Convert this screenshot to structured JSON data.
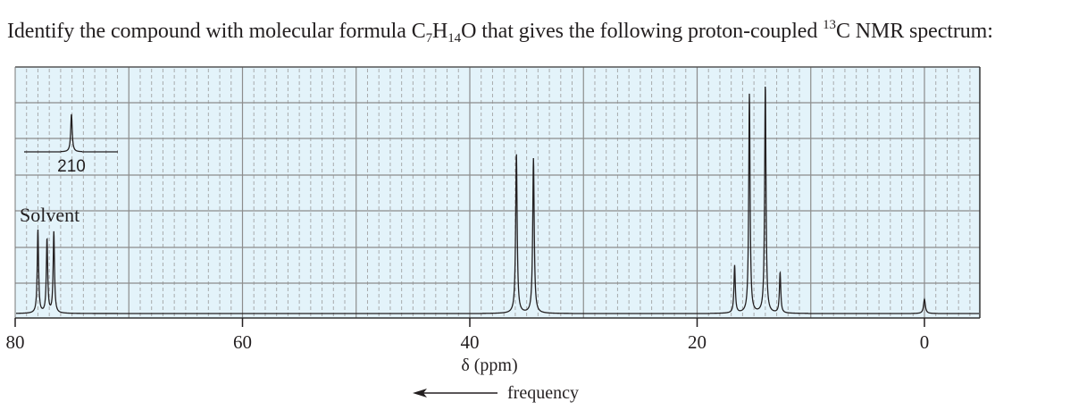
{
  "question": {
    "prefix": "Identify the compound with molecular formula C",
    "sub1": "7",
    "mid1": "H",
    "sub2": "14",
    "mid2": "O that gives the following proton-coupled ",
    "sup": "13",
    "suffix": "C NMR spectrum:"
  },
  "colors": {
    "plot_background": "#e3f3fa",
    "major_grid": "#8c8c8c",
    "minor_grid": "#9a9a9a",
    "trace": "#231f20"
  },
  "axis": {
    "ticks": [
      "80",
      "60",
      "40",
      "20",
      "0"
    ],
    "xlabel": "δ (ppm)",
    "frequency_label": "frequency"
  },
  "annotations": {
    "inset_label": "210",
    "solvent_label": "Solvent"
  },
  "chart_data": {
    "type": "line",
    "title": "Proton-coupled 13C NMR spectrum of C7H14O",
    "xlabel": "δ (ppm)",
    "ylabel": "",
    "xlim": [
      80,
      0
    ],
    "x_ticks": [
      80,
      60,
      40,
      20,
      0
    ],
    "grid": true,
    "major_grid_ppm_step": 10,
    "minor_grid_ppm_step": 1,
    "legend": null,
    "annotations": [
      {
        "text": "210",
        "note": "offset inset showing singlet at 210 ppm (C=O)"
      },
      {
        "text": "Solvent",
        "note": "CDCl3 triplet near 77 ppm"
      },
      {
        "text": "frequency",
        "note": "arrow pointing left (higher frequency)"
      }
    ],
    "peaks": [
      {
        "group": "inset",
        "ppm": 210.0,
        "multiplicity": "singlet",
        "rel_height": 0.43
      },
      {
        "group": "solvent",
        "ppm": 78.0,
        "multiplicity": "triplet line",
        "rel_height": 0.35
      },
      {
        "group": "solvent",
        "ppm": 77.2,
        "multiplicity": "triplet line",
        "rel_height": 0.31
      },
      {
        "group": "solvent",
        "ppm": 76.6,
        "multiplicity": "triplet line",
        "rel_height": 0.34
      },
      {
        "group": "CH2",
        "ppm": 35.9,
        "multiplicity": "triplet line",
        "rel_height": 0.67
      },
      {
        "group": "CH2",
        "ppm": 34.4,
        "multiplicity": "triplet line",
        "rel_height": 0.65
      },
      {
        "group": "CH3",
        "ppm": 16.7,
        "multiplicity": "quartet line",
        "rel_height": 0.2
      },
      {
        "group": "CH3",
        "ppm": 15.4,
        "multiplicity": "quartet line",
        "rel_height": 0.92
      },
      {
        "group": "CH3",
        "ppm": 14.0,
        "multiplicity": "quartet line",
        "rel_height": 0.96
      },
      {
        "group": "CH3",
        "ppm": 12.7,
        "multiplicity": "quartet line",
        "rel_height": 0.17
      },
      {
        "group": "TMS",
        "ppm": 0.0,
        "multiplicity": "singlet",
        "rel_height": 0.06
      }
    ]
  }
}
